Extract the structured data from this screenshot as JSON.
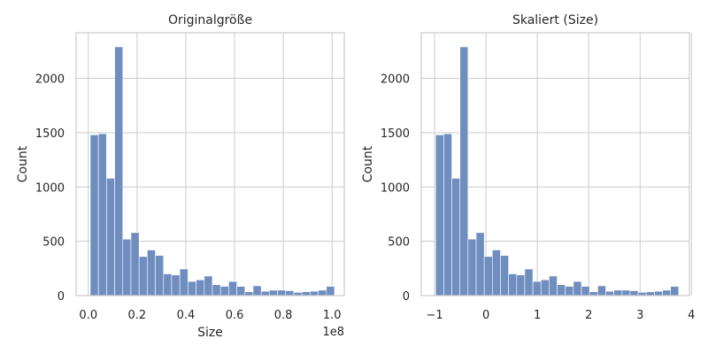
{
  "figure": {
    "colors": {
      "bar": "#6f8ebf",
      "grid": "#cccccc",
      "text": "#262626",
      "background": "#ffffff"
    }
  },
  "chart_data": [
    {
      "type": "bar",
      "title": "Originalgröße",
      "xlabel": "Size",
      "ylabel": "Count",
      "x_offset_label": "1e8",
      "xlim": [
        -0.05,
        1.05
      ],
      "ylim": [
        0,
        2420
      ],
      "x_ticks": [
        0.0,
        0.2,
        0.4,
        0.6,
        0.8,
        1.0
      ],
      "x_tick_labels": [
        "0.0",
        "0.2",
        "0.4",
        "0.6",
        "0.8",
        "1.0"
      ],
      "y_ticks": [
        0,
        500,
        1000,
        1500,
        2000
      ],
      "y_tick_labels": [
        "0",
        "500",
        "1000",
        "1500",
        "2000"
      ],
      "bin_edges": [
        0.008,
        0.0414,
        0.0748,
        0.1082,
        0.1416,
        0.175,
        0.2084,
        0.2418,
        0.2752,
        0.3086,
        0.342,
        0.3754,
        0.4088,
        0.4422,
        0.4756,
        0.509,
        0.5424,
        0.5758,
        0.6092,
        0.6426,
        0.676,
        0.7094,
        0.7428,
        0.7762,
        0.8096,
        0.843,
        0.8764,
        0.9098,
        0.9432,
        0.9766,
        1.01
      ],
      "values": [
        1480,
        1490,
        1080,
        2290,
        520,
        580,
        360,
        420,
        370,
        200,
        190,
        245,
        130,
        145,
        180,
        100,
        85,
        130,
        85,
        35,
        90,
        40,
        50,
        50,
        45,
        30,
        35,
        40,
        50,
        85
      ],
      "grid": true
    },
    {
      "type": "bar",
      "title": "Skaliert (Size)",
      "xlabel": "",
      "ylabel": "Count",
      "xlim": [
        -1.26,
        3.96
      ],
      "ylim": [
        0,
        2420
      ],
      "x_ticks": [
        -1,
        0,
        1,
        2,
        3,
        4
      ],
      "x_tick_labels": [
        "−1",
        "0",
        "1",
        "2",
        "3",
        "4"
      ],
      "y_ticks": [
        0,
        500,
        1000,
        1500,
        2000
      ],
      "y_tick_labels": [
        "0",
        "500",
        "1000",
        "1500",
        "2000"
      ],
      "bin_edges": [
        -0.98,
        -0.8223,
        -0.6646,
        -0.5069,
        -0.3492,
        -0.1915,
        -0.0338,
        0.1239,
        0.2816,
        0.4393,
        0.597,
        0.7547,
        0.9124,
        1.0701,
        1.2278,
        1.3855,
        1.5432,
        1.7009,
        1.8586,
        2.0163,
        2.174,
        2.3317,
        2.4894,
        2.6471,
        2.8048,
        2.9625,
        3.1202,
        3.2779,
        3.4356,
        3.5933,
        3.751
      ],
      "values": [
        1480,
        1490,
        1080,
        2290,
        520,
        580,
        360,
        420,
        370,
        200,
        190,
        245,
        130,
        145,
        180,
        100,
        85,
        130,
        85,
        35,
        90,
        40,
        50,
        50,
        45,
        30,
        35,
        40,
        50,
        85
      ],
      "grid": true
    }
  ]
}
